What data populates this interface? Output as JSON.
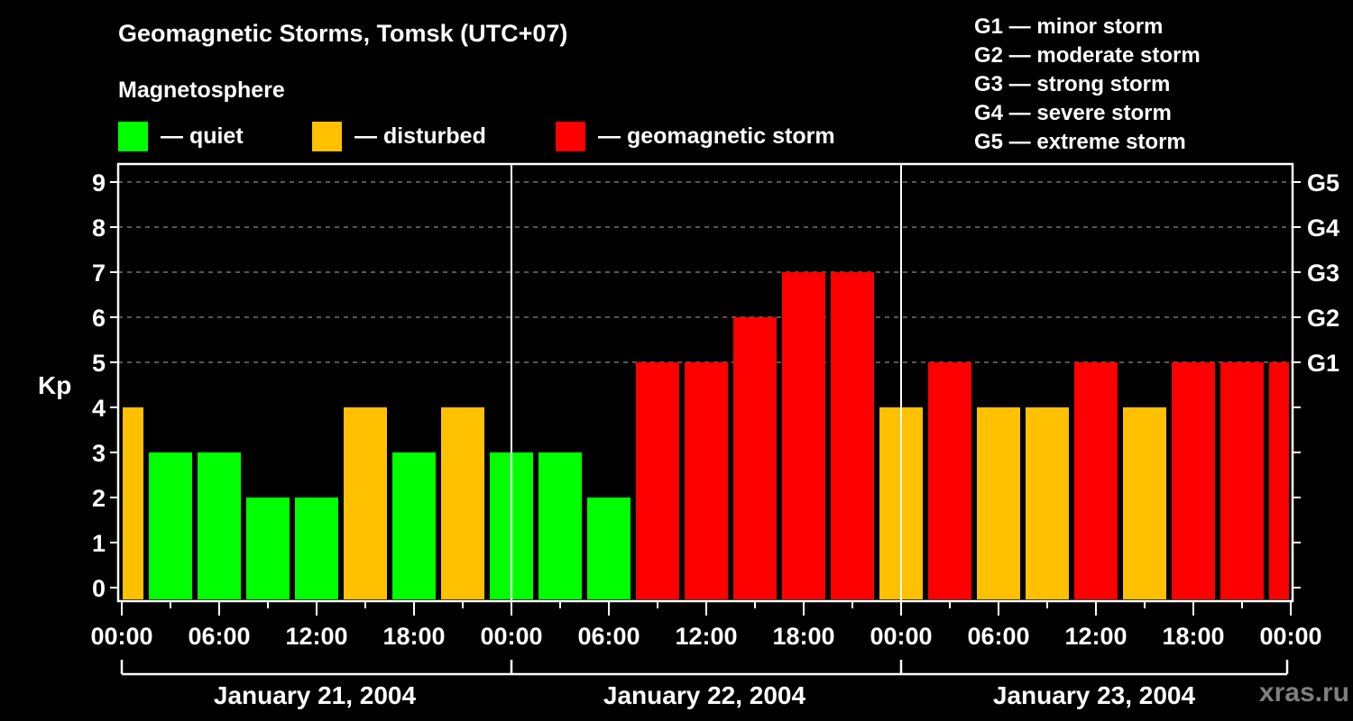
{
  "title": "Geomagnetic Storms, Tomsk (UTC+07)",
  "subtitle": "Magnetosphere",
  "legend": [
    {
      "label": "— quiet",
      "color": "#00ff00"
    },
    {
      "label": "— disturbed",
      "color": "#ffc000"
    },
    {
      "label": "— geomagnetic storm",
      "color": "#ff0000"
    }
  ],
  "g_scale": [
    "G1 — minor storm",
    "G2 — moderate storm",
    "G3 — strong storm",
    "G4 — severe storm",
    "G5 — extreme storm"
  ],
  "watermark": "xras.ru",
  "chart_data": {
    "type": "bar",
    "title": "Geomagnetic Storms, Tomsk (UTC+07)",
    "xlabel": "",
    "ylabel": "Kp",
    "ylim": [
      0,
      9
    ],
    "yticks": [
      0,
      1,
      2,
      3,
      4,
      5,
      6,
      7,
      8,
      9
    ],
    "right_axis_labels": {
      "5": "G1",
      "6": "G2",
      "7": "G3",
      "8": "G4",
      "9": "G5"
    },
    "grid": "dashed horizontal at Kp 5-9",
    "xtick_labels": [
      "00:00",
      "06:00",
      "12:00",
      "18:00",
      "00:00",
      "06:00",
      "12:00",
      "18:00",
      "00:00",
      "06:00",
      "12:00",
      "18:00",
      "00:00"
    ],
    "day_labels": [
      "January 21, 2004",
      "January 22, 2004",
      "January 23, 2004"
    ],
    "interval_hours": 3,
    "categories": [
      "Jan21 00:00",
      "Jan21 01:30",
      "Jan21 04:30",
      "Jan21 07:30",
      "Jan21 10:30",
      "Jan21 13:30",
      "Jan21 16:30",
      "Jan21 19:30",
      "Jan21 22:30",
      "Jan22 01:30",
      "Jan22 04:30",
      "Jan22 07:30",
      "Jan22 10:30",
      "Jan22 13:30",
      "Jan22 16:30",
      "Jan22 19:30",
      "Jan22 22:30",
      "Jan23 01:30",
      "Jan23 04:30",
      "Jan23 07:30",
      "Jan23 10:30",
      "Jan23 13:30",
      "Jan23 16:30",
      "Jan23 19:30",
      "Jan23 22:30"
    ],
    "values": [
      4,
      3,
      3,
      2,
      2,
      4,
      3,
      4,
      3,
      3,
      2,
      5,
      5,
      6,
      7,
      7,
      4,
      5,
      4,
      4,
      5,
      4,
      5,
      5,
      5
    ],
    "status": [
      "disturbed",
      "quiet",
      "quiet",
      "quiet",
      "quiet",
      "disturbed",
      "quiet",
      "disturbed",
      "quiet",
      "quiet",
      "quiet",
      "storm",
      "storm",
      "storm",
      "storm",
      "storm",
      "disturbed",
      "storm",
      "disturbed",
      "disturbed",
      "storm",
      "disturbed",
      "storm",
      "storm",
      "storm"
    ],
    "colors": {
      "quiet": "#00ff00",
      "disturbed": "#ffc000",
      "storm": "#ff0000"
    }
  }
}
